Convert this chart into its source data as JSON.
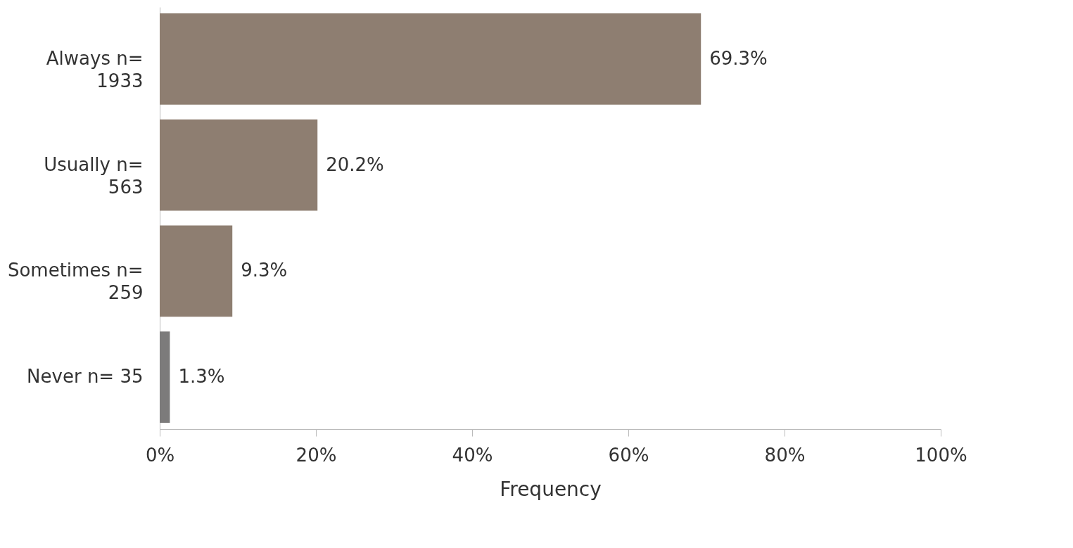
{
  "chart_data": {
    "type": "bar",
    "orientation": "horizontal",
    "xlabel": "Frequency",
    "categories": [
      "Always n= 1933",
      "Usually n= 563",
      "Sometimes n= 259",
      "Never n= 35"
    ],
    "values": [
      69.3,
      20.2,
      9.3,
      1.3
    ],
    "colors": [
      "#8e7e71",
      "#8e7e71",
      "#8e7e71",
      "#7c7b7b"
    ],
    "value_labels": [
      "69.3%",
      "20.2%",
      "9.3%",
      "1.3%"
    ],
    "xlim": [
      0,
      100
    ],
    "xticks": [
      {
        "value": 0,
        "label": "0%"
      },
      {
        "value": 20,
        "label": "20%"
      },
      {
        "value": 40,
        "label": "40%"
      },
      {
        "value": 60,
        "label": "60%"
      },
      {
        "value": 80,
        "label": "80%"
      },
      {
        "value": 100,
        "label": "100%"
      }
    ],
    "grid": false
  }
}
